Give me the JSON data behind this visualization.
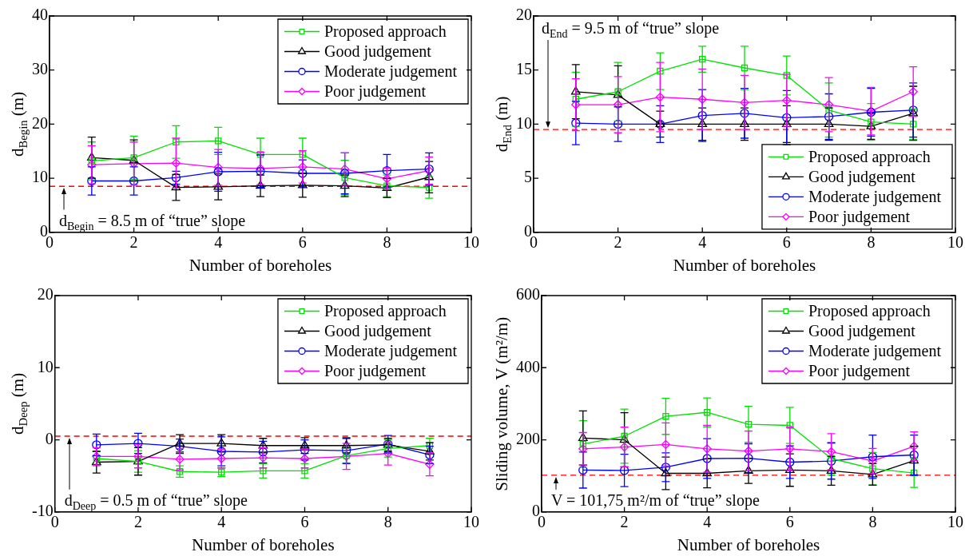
{
  "chart_data": [
    {
      "type": "line",
      "xlabel": "Number of boreholes",
      "ylabel": "d$_{Begin}$ (m)",
      "x": [
        1,
        2,
        3,
        4,
        5,
        6,
        7,
        8,
        9
      ],
      "xlim": [
        0,
        10
      ],
      "xticks": [
        0,
        2,
        4,
        6,
        8,
        10
      ],
      "ylim": [
        0,
        40
      ],
      "yticks": [
        0,
        10,
        20,
        30,
        40
      ],
      "legend": "top right",
      "ref_lines": [
        {
          "axis": "y",
          "value": 8.5,
          "label": "d$_{Begin}$ = 8.5 m of “true” slope",
          "color": "#ff0000",
          "line_style": "dashed"
        }
      ],
      "series": [
        {
          "name": "Proposed approach",
          "color": "#00e000",
          "marker": "square",
          "values": [
            13.2,
            13.8,
            16.7,
            16.9,
            14.4,
            14.4,
            10.1,
            8.6,
            8.3
          ],
          "errors": [
            3.5,
            4,
            3,
            2.5,
            3,
            3,
            3.2,
            2,
            2
          ]
        },
        {
          "name": "Good judgement",
          "color": "#000000",
          "marker": "triangle",
          "values": [
            13.8,
            13.3,
            8.3,
            8.4,
            8.6,
            8.7,
            8.6,
            8.2,
            10.2
          ],
          "errors": [
            3.8,
            3.8,
            2.4,
            2.4,
            2,
            2.2,
            2,
            1.8,
            2.9
          ]
        },
        {
          "name": "Moderate judgement",
          "color": "#0000ff",
          "marker": "circle",
          "values": [
            9.5,
            9.5,
            10.1,
            11.2,
            11.3,
            10.9,
            10.9,
            11.4,
            11.7
          ],
          "errors": [
            2.6,
            2.6,
            1.2,
            3.6,
            3,
            2.5,
            3.8,
            3,
            3
          ]
        },
        {
          "name": "Poor judgement",
          "color": "#ff00ff",
          "marker": "diamond",
          "values": [
            12.5,
            12.7,
            12.8,
            12,
            11.8,
            12.1,
            11.7,
            9.9,
            11.4
          ],
          "errors": [
            3.5,
            4,
            4.6,
            3.3,
            3,
            3,
            3,
            2,
            2.5
          ]
        }
      ]
    },
    {
      "type": "line",
      "xlabel": "Number of boreholes",
      "ylabel": "d$_{End}$ (m)",
      "x": [
        1,
        2,
        3,
        4,
        5,
        6,
        7,
        8,
        9
      ],
      "xlim": [
        0,
        10
      ],
      "xticks": [
        0,
        2,
        4,
        6,
        8,
        10
      ],
      "ylim": [
        0,
        20
      ],
      "yticks": [
        0,
        5,
        10,
        15,
        20
      ],
      "legend": "bottom right",
      "ref_lines": [
        {
          "axis": "y",
          "value": 9.5,
          "label": "d$_{End}$ = 9.5 m of “true” slope",
          "color": "#ff0000",
          "line_style": "dashed"
        }
      ],
      "series": [
        {
          "name": "Proposed approach",
          "color": "#00e000",
          "marker": "square",
          "values": [
            12.3,
            13,
            14.9,
            16,
            15.2,
            14.5,
            11.3,
            10.2,
            10
          ],
          "errors": [
            2.5,
            2.7,
            1.7,
            1.2,
            2,
            1.8,
            2.5,
            1.7,
            1.4
          ]
        },
        {
          "name": "Good judgement",
          "color": "#000000",
          "marker": "triangle",
          "values": [
            13,
            12.7,
            10,
            10,
            10,
            10,
            10,
            9.8,
            11
          ],
          "errors": [
            2.5,
            2.7,
            1.2,
            1.5,
            1.5,
            1.7,
            1.5,
            1.2,
            2.5
          ]
        },
        {
          "name": "Moderate judgement",
          "color": "#0000ff",
          "marker": "circle",
          "values": [
            10.1,
            10,
            10,
            10.8,
            11,
            10.6,
            10.7,
            11.1,
            11.3
          ],
          "errors": [
            2,
            1.6,
            1.7,
            2.4,
            2.3,
            2.5,
            2.1,
            2.2,
            2.5
          ]
        },
        {
          "name": "Poor judgement",
          "color": "#ff00ff",
          "marker": "diamond",
          "values": [
            11.8,
            11.8,
            12.5,
            12.3,
            12,
            12.2,
            11.8,
            11.2,
            13
          ],
          "errors": [
            2.4,
            2.6,
            3.2,
            2.8,
            2.5,
            2.4,
            2.5,
            2.2,
            2.3
          ]
        }
      ]
    },
    {
      "type": "line",
      "xlabel": "Number of boreholes",
      "ylabel": "d$_{Deep}$ (m)",
      "x": [
        1,
        2,
        3,
        4,
        5,
        6,
        7,
        8,
        9
      ],
      "xlim": [
        0,
        10
      ],
      "xticks": [
        0,
        2,
        4,
        6,
        8,
        10
      ],
      "ylim": [
        -10,
        20
      ],
      "yticks": [
        -10,
        0,
        10,
        20
      ],
      "legend": "top right",
      "ref_lines": [
        {
          "axis": "y",
          "value": 0.5,
          "label": "d$_{Deep}$ = 0.5 m of “true” slope",
          "color": "#ff0000",
          "line_style": "dashed"
        }
      ],
      "series": [
        {
          "name": "Proposed approach",
          "color": "#00e000",
          "marker": "square",
          "values": [
            -2.6,
            -3,
            -4.4,
            -4.5,
            -4.3,
            -4.3,
            -2.2,
            -1.2,
            -0.8
          ],
          "errors": [
            1,
            1.5,
            0.8,
            0.6,
            1,
            1,
            1,
            1.2,
            1
          ]
        },
        {
          "name": "Good judgement",
          "color": "#000000",
          "marker": "triangle",
          "values": [
            -3.1,
            -3,
            -0.5,
            -0.5,
            -0.8,
            -0.8,
            -0.8,
            -0.7,
            -1.6
          ],
          "errors": [
            1.5,
            1.9,
            1.2,
            1.2,
            1,
            1.1,
            1,
            0.9,
            1.2
          ]
        },
        {
          "name": "Moderate judgement",
          "color": "#0000ff",
          "marker": "circle",
          "values": [
            -0.7,
            -0.5,
            -0.9,
            -1.6,
            -1.7,
            -1.4,
            -1.5,
            -0.6,
            -2.1
          ],
          "errors": [
            1.5,
            1.4,
            1,
            2,
            1.5,
            1.4,
            1.8,
            1.2,
            1.2
          ]
        },
        {
          "name": "Poor judgement",
          "color": "#ff00ff",
          "marker": "diamond",
          "values": [
            -2.3,
            -2.3,
            -2.7,
            -2.6,
            -2.5,
            -2.6,
            -2.3,
            -1.9,
            -3.4
          ],
          "errors": [
            1.2,
            1.6,
            1.5,
            1.3,
            1.4,
            1.3,
            1.8,
            1.6,
            1.6
          ]
        }
      ]
    },
    {
      "type": "line",
      "xlabel": "Number of boreholes",
      "ylabel": "Sliding volume, V (m²/m)",
      "x": [
        1,
        2,
        3,
        4,
        5,
        6,
        7,
        8,
        9
      ],
      "xlim": [
        0,
        10
      ],
      "xticks": [
        0,
        2,
        4,
        6,
        8,
        10
      ],
      "ylim": [
        0,
        600
      ],
      "yticks": [
        0,
        200,
        400,
        600
      ],
      "legend": "top right",
      "ref_lines": [
        {
          "axis": "y",
          "value": 101.75,
          "label": "V = 101,75 m²/m of “true” slope",
          "color": "#ff0000",
          "line_style": "dashed"
        }
      ],
      "series": [
        {
          "name": "Proposed approach",
          "color": "#00e000",
          "marker": "square",
          "values": [
            188,
            210,
            265,
            276,
            243,
            240,
            148,
            120,
            108
          ],
          "errors": [
            65,
            75,
            50,
            40,
            50,
            50,
            45,
            45,
            40
          ]
        },
        {
          "name": "Good judgement",
          "color": "#000000",
          "marker": "triangle",
          "values": [
            205,
            200,
            107,
            107,
            114,
            116,
            114,
            104,
            142
          ],
          "errors": [
            75,
            75,
            45,
            40,
            35,
            45,
            40,
            30,
            40
          ]
        },
        {
          "name": "Moderate judgement",
          "color": "#0000ff",
          "marker": "circle",
          "values": [
            116,
            115,
            124,
            148,
            149,
            138,
            141,
            153,
            158
          ],
          "errors": [
            50,
            45,
            40,
            55,
            40,
            45,
            50,
            60,
            55
          ]
        },
        {
          "name": "Poor judgement",
          "color": "#ff00ff",
          "marker": "diamond",
          "values": [
            175,
            180,
            187,
            175,
            169,
            175,
            167,
            141,
            182
          ],
          "errors": [
            45,
            55,
            60,
            65,
            55,
            60,
            50,
            35,
            40
          ]
        }
      ]
    }
  ]
}
